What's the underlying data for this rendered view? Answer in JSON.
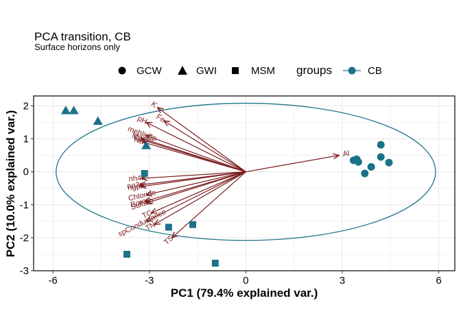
{
  "chart_data": {
    "type": "scatter",
    "title": "PCA transition, CB",
    "subtitle": "Surface horizons only",
    "xlabel": "PC1 (79.4% explained var.)",
    "ylabel": "PC2 (10.0% explained var.)",
    "xlim": [
      -6.6,
      6.5
    ],
    "ylim": [
      -3,
      2.3
    ],
    "xticks": [
      -6,
      -3,
      0,
      3,
      6
    ],
    "yticks": [
      -3,
      -2,
      -1,
      0,
      1,
      2
    ],
    "grid": true,
    "legend": {
      "position": "top",
      "shapes": [
        {
          "label": "GCW",
          "shape": "circle"
        },
        {
          "label": "GWI",
          "shape": "triangle"
        },
        {
          "label": "MSM",
          "shape": "square"
        }
      ],
      "groups_title": "groups",
      "groups": [
        {
          "label": "CB",
          "color": "#1b7389"
        }
      ]
    },
    "colors": {
      "points": "#1b7389",
      "ellipse": "#1b7389",
      "arrows": "#7a1c1c",
      "grid": "#e6e6e6"
    },
    "ellipse": {
      "center": [
        0,
        0
      ],
      "rx": 5.9,
      "ry": 2.08
    },
    "points": [
      {
        "x": -5.6,
        "y": 1.86,
        "shape": "triangle"
      },
      {
        "x": -5.35,
        "y": 1.86,
        "shape": "triangle"
      },
      {
        "x": -4.6,
        "y": 1.54,
        "shape": "triangle"
      },
      {
        "x": -3.1,
        "y": 0.8,
        "shape": "triangle"
      },
      {
        "x": -3.15,
        "y": -0.05,
        "shape": "square"
      },
      {
        "x": -2.4,
        "y": -1.68,
        "shape": "square"
      },
      {
        "x": -1.65,
        "y": -1.6,
        "shape": "square"
      },
      {
        "x": -3.7,
        "y": -2.5,
        "shape": "square"
      },
      {
        "x": -0.95,
        "y": -2.77,
        "shape": "square"
      },
      {
        "x": 3.35,
        "y": 0.35,
        "shape": "circle"
      },
      {
        "x": 3.45,
        "y": 0.38,
        "shape": "circle"
      },
      {
        "x": 3.5,
        "y": 0.3,
        "shape": "circle"
      },
      {
        "x": 3.7,
        "y": -0.05,
        "shape": "circle"
      },
      {
        "x": 3.9,
        "y": 0.15,
        "shape": "circle"
      },
      {
        "x": 4.2,
        "y": 0.45,
        "shape": "circle"
      },
      {
        "x": 4.2,
        "y": 0.82,
        "shape": "circle"
      },
      {
        "x": 4.45,
        "y": 0.28,
        "shape": "circle"
      }
    ],
    "loadings": [
      {
        "label": "K",
        "x": -2.75,
        "y": 1.95
      },
      {
        "label": "Fe",
        "x": -2.55,
        "y": 1.55
      },
      {
        "label": "pH",
        "x": -3.1,
        "y": 1.5
      },
      {
        "label": "mehlichp",
        "x": -3.1,
        "y": 1.1
      },
      {
        "label": "Mg",
        "x": -3.25,
        "y": 1.02
      },
      {
        "label": "Ca",
        "x": -3.22,
        "y": 0.97
      },
      {
        "label": "Na",
        "x": -3.2,
        "y": 0.9
      },
      {
        "label": "Al",
        "x": 2.9,
        "y": 0.5
      },
      {
        "label": "nh4n",
        "x": -3.25,
        "y": -0.2
      },
      {
        "label": "no3n",
        "x": -3.3,
        "y": -0.4
      },
      {
        "label": "ngpn",
        "x": -3.28,
        "y": -0.45
      },
      {
        "label": "Chloride",
        "x": -3.1,
        "y": -0.7
      },
      {
        "label": "Sulfate",
        "x": -3.1,
        "y": -0.95
      },
      {
        "label": "Boron",
        "x": -3.15,
        "y": -0.9
      },
      {
        "label": "spConductance",
        "x": -3.1,
        "y": -1.5
      },
      {
        "label": "TC",
        "x": -2.95,
        "y": -1.25
      },
      {
        "label": "TN",
        "x": -2.85,
        "y": -1.6
      },
      {
        "label": "TS",
        "x": -2.3,
        "y": -2.0
      }
    ]
  }
}
